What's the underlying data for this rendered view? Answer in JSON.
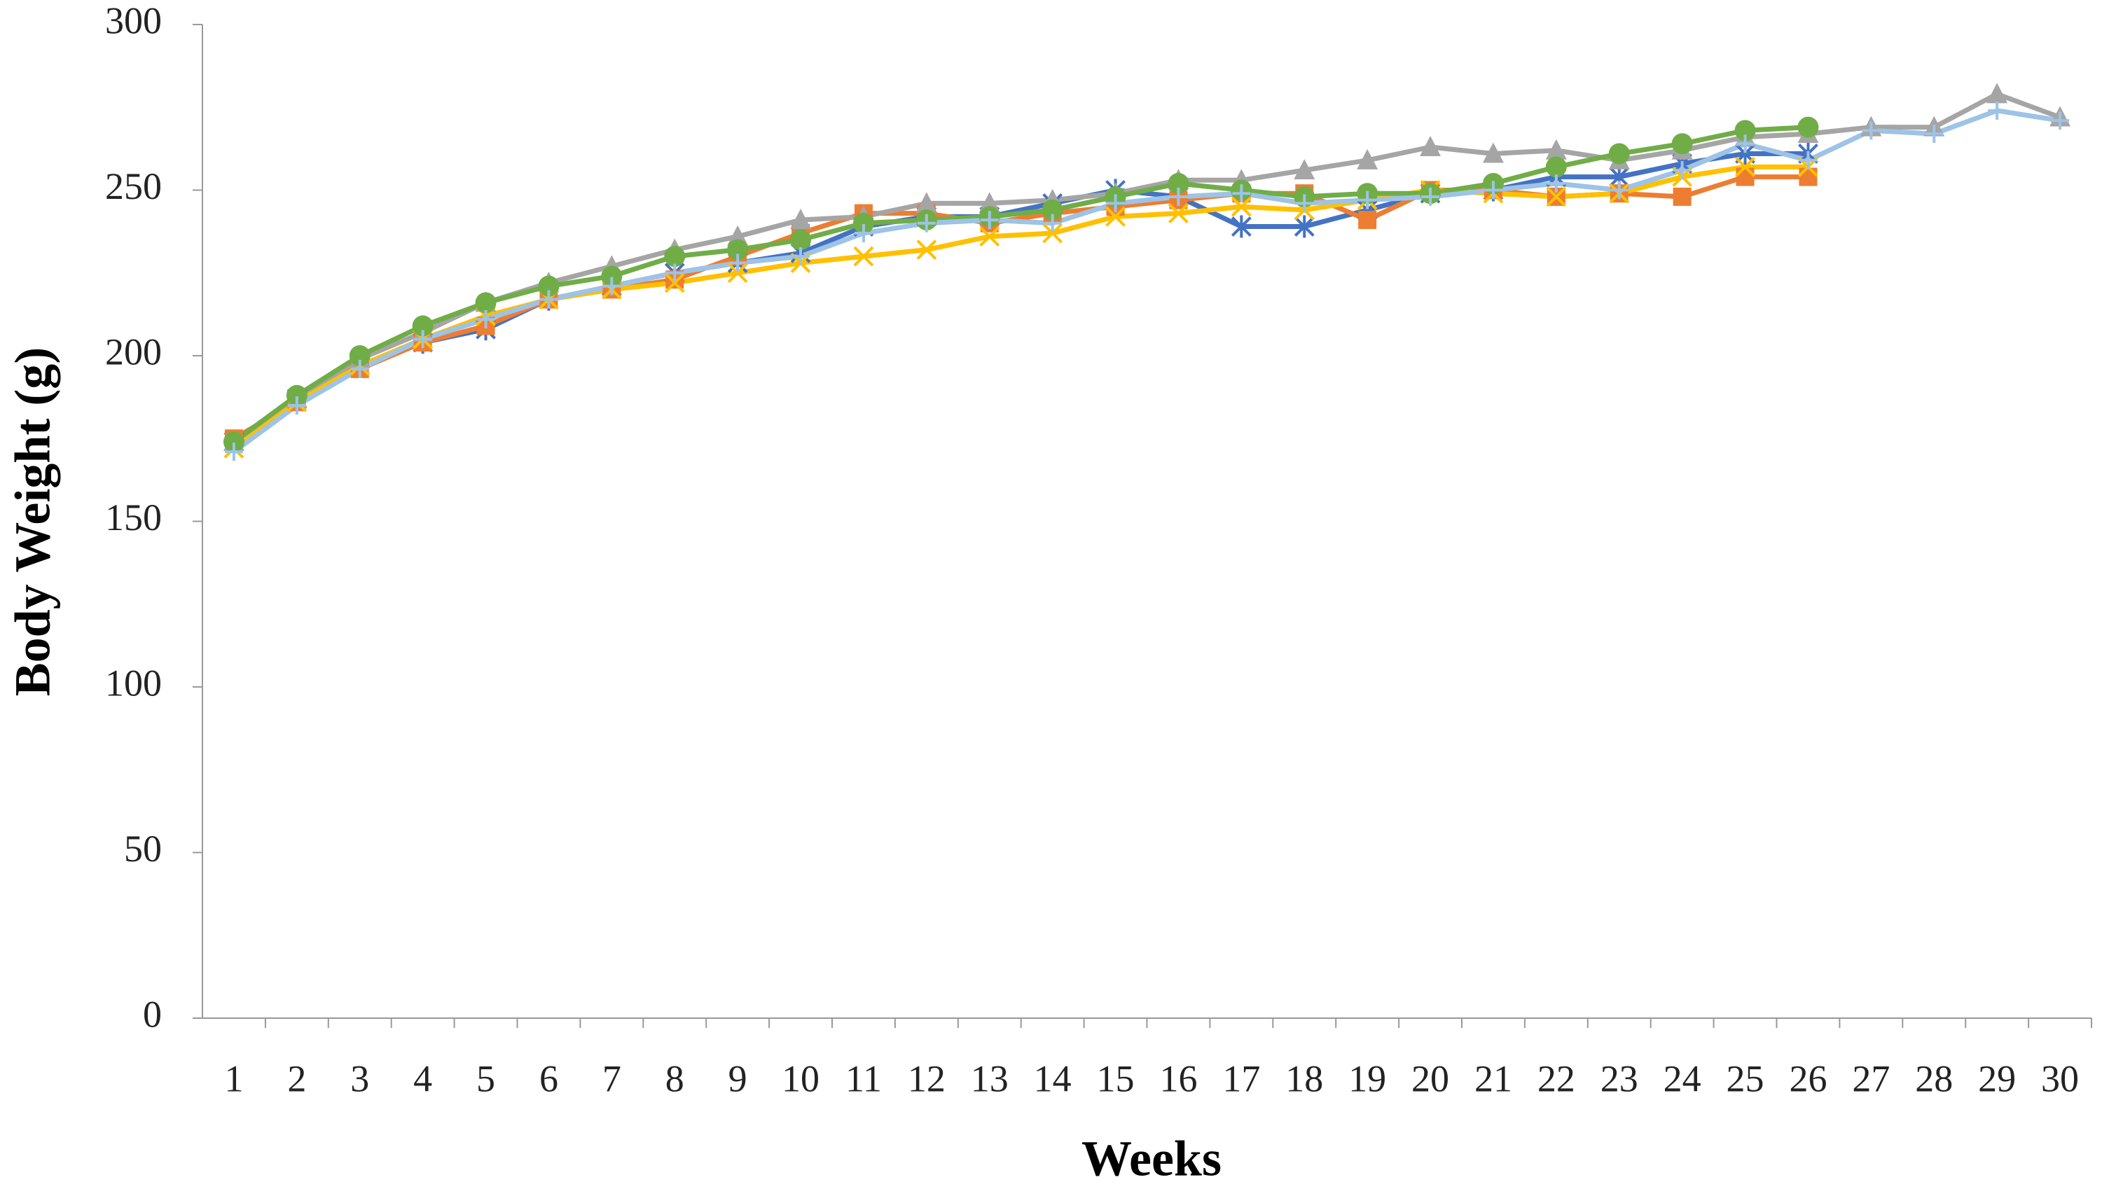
{
  "chart_data": {
    "type": "line",
    "x_label": "Weeks",
    "y_label": "Body Weight (g)",
    "categories": [
      "1",
      "2",
      "3",
      "4",
      "5",
      "6",
      "7",
      "8",
      "9",
      "10",
      "11",
      "12",
      "13",
      "14",
      "15",
      "16",
      "17",
      "18",
      "19",
      "20",
      "21",
      "22",
      "23",
      "24",
      "25",
      "26",
      "27",
      "28",
      "29",
      "30"
    ],
    "ylim": [
      0,
      300
    ],
    "yticks": [
      0,
      50,
      100,
      150,
      200,
      250,
      300
    ],
    "grid": false,
    "series": [
      {
        "color": "#4472c4",
        "marker": "asterisk",
        "values": [
          174,
          187,
          197,
          204,
          208,
          217,
          221,
          225,
          228,
          231,
          239,
          242,
          242,
          246,
          250,
          248,
          239,
          239,
          244,
          249,
          250,
          254,
          254,
          258,
          261,
          261,
          null,
          null,
          null,
          null
        ]
      },
      {
        "color": "#ed7d31",
        "marker": "square",
        "values": [
          175,
          186,
          196,
          204,
          209,
          217,
          220,
          223,
          230,
          237,
          243,
          243,
          240,
          243,
          245,
          247,
          249,
          249,
          241,
          250,
          250,
          248,
          249,
          248,
          254,
          254,
          null,
          null,
          null,
          null
        ]
      },
      {
        "color": "#a5a5a5",
        "marker": "triangle",
        "values": [
          174,
          187,
          199,
          207,
          216,
          222,
          227,
          232,
          236,
          241,
          242,
          246,
          246,
          247,
          249,
          253,
          253,
          256,
          259,
          263,
          261,
          262,
          259,
          262,
          266,
          267,
          269,
          269,
          279,
          272
        ]
      },
      {
        "color": "#ffc000",
        "marker": "x",
        "values": [
          172,
          186,
          197,
          205,
          212,
          217,
          220,
          222,
          225,
          228,
          230,
          232,
          236,
          237,
          242,
          243,
          245,
          244,
          247,
          250,
          249,
          248,
          249,
          254,
          257,
          257,
          null,
          null,
          null,
          null
        ]
      },
      {
        "color": "#70ad47",
        "marker": "circle",
        "values": [
          174,
          188,
          200,
          209,
          216,
          221,
          224,
          230,
          232,
          235,
          240,
          241,
          242,
          244,
          248,
          252,
          250,
          248,
          249,
          249,
          252,
          257,
          261,
          264,
          268,
          269,
          null,
          null,
          null,
          null
        ]
      },
      {
        "color": "#9dc3e6",
        "marker": "plus",
        "values": [
          171,
          185,
          196,
          205,
          211,
          217,
          221,
          225,
          228,
          230,
          237,
          240,
          241,
          240,
          246,
          248,
          249,
          246,
          247,
          248,
          250,
          252,
          250,
          256,
          264,
          259,
          268,
          267,
          274,
          271
        ]
      }
    ]
  }
}
